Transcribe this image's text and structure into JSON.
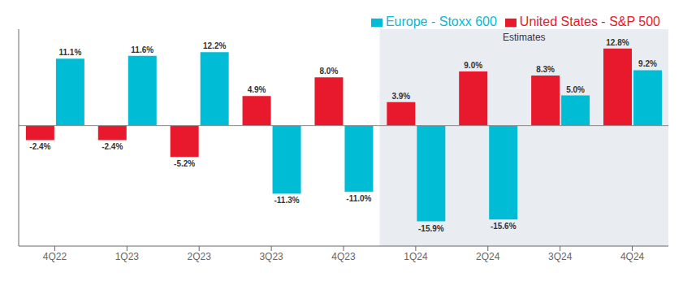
{
  "chart_data": {
    "type": "bar",
    "categories": [
      "4Q22",
      "1Q23",
      "2Q23",
      "3Q23",
      "4Q23",
      "1Q24",
      "2Q24",
      "3Q24",
      "4Q24"
    ],
    "series": [
      {
        "name": "United States - S&P 500",
        "color": "#e8192c",
        "values": [
          -2.4,
          -2.4,
          -5.2,
          4.9,
          8.0,
          3.9,
          9.0,
          8.3,
          12.8
        ],
        "value_labels": [
          "-2.4%",
          "-2.4%",
          "-5.2%",
          "4.9%",
          "8.0%",
          "3.9%",
          "9.0%",
          "8.3%",
          "12.8%"
        ]
      },
      {
        "name": "Europe - Stoxx 600",
        "color": "#00bcd4",
        "values": [
          11.1,
          11.6,
          12.2,
          -11.3,
          -11.0,
          -15.9,
          -15.6,
          5.0,
          9.2
        ],
        "value_labels": [
          "11.1%",
          "11.6%",
          "12.2%",
          "-11.3%",
          "-11.0%",
          "-15.9%",
          "-15.6%",
          "5.0%",
          "9.2%"
        ]
      }
    ],
    "ylim": [
      -20,
      16
    ],
    "data_labels": true,
    "tick_labels": "x",
    "grid": false,
    "legend": "upper right",
    "annotations": [
      {
        "text": "Estimates",
        "from": "1Q24",
        "to": "4Q24"
      }
    ]
  }
}
